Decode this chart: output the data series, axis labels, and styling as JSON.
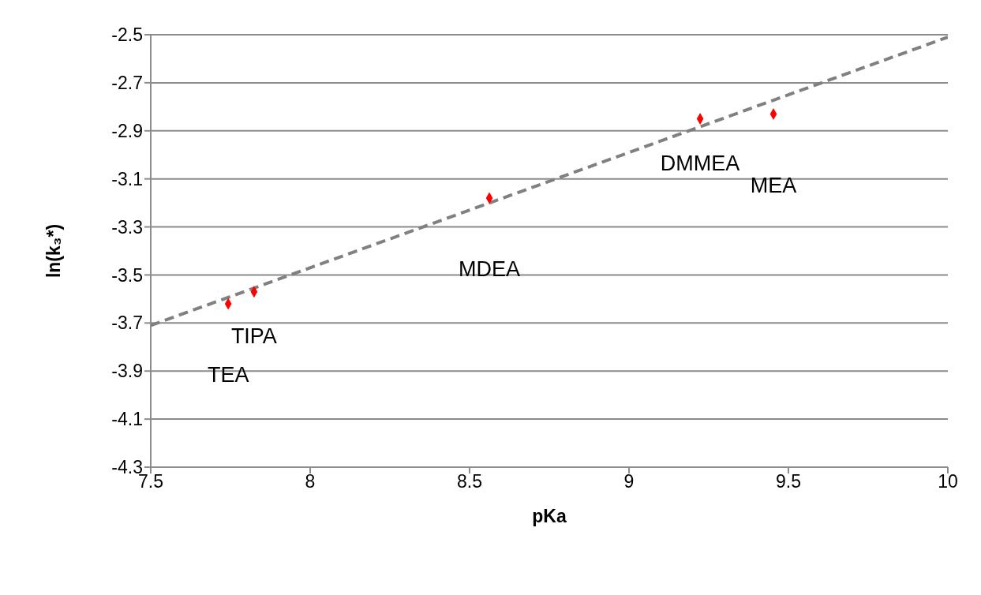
{
  "chart_data": {
    "type": "scatter",
    "xlabel": "pKa",
    "ylabel": "ln(k₃*)",
    "xlim": [
      7.5,
      10
    ],
    "xticks": [
      7.5,
      8,
      8.5,
      9,
      9.5,
      10
    ],
    "ylim": [
      -4.3,
      -2.5
    ],
    "yticks": [
      -4.3,
      -4.1,
      -3.9,
      -3.7,
      -3.5,
      -3.3,
      -3.1,
      -2.9,
      -2.7,
      -2.5
    ],
    "grid": "y",
    "legend": false,
    "series": [
      {
        "type": "line",
        "x": [
          7.5,
          10
        ],
        "values": [
          -3.71,
          -2.51
        ],
        "color": "#808080",
        "line_style": "dashed",
        "marker": "none"
      },
      {
        "type": "scatter",
        "x": [
          7.743,
          7.824,
          8.562,
          9.223,
          9.453
        ],
        "values": [
          -3.62,
          -3.57,
          -3.18,
          -2.85,
          -2.83
        ],
        "color": "#ff0000",
        "marker": "diamond"
      }
    ],
    "annotations": [
      {
        "text": "TEA",
        "x": 7.743,
        "y": -3.62
      },
      {
        "text": "TIPA",
        "x": 7.824,
        "y": -3.57
      },
      {
        "text": "MDEA",
        "x": 8.562,
        "y": -3.18
      },
      {
        "text": "DMMEA",
        "x": 9.223,
        "y": -2.85
      },
      {
        "text": "MEA",
        "x": 9.453,
        "y": -2.83
      }
    ]
  }
}
